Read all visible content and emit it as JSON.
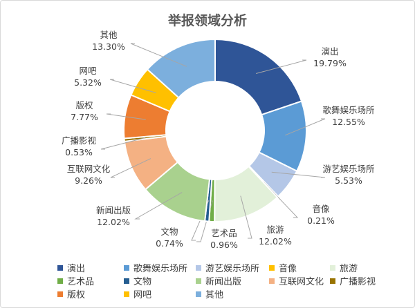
{
  "chart_data": {
    "type": "pie",
    "variant": "donut",
    "title": "举报领域分析",
    "legend_position": "bottom",
    "categories": [
      "演出",
      "歌舞娱乐场所",
      "游艺娱乐场所",
      "音像",
      "旅游",
      "艺术品",
      "文物",
      "新闻出版",
      "互联网文化",
      "广播影视",
      "版权",
      "网吧",
      "其他"
    ],
    "values": [
      19.79,
      12.55,
      5.53,
      0.21,
      12.02,
      0.96,
      0.74,
      12.02,
      9.26,
      0.53,
      7.77,
      5.32,
      13.3
    ],
    "data_labels": [
      "19.79%",
      "12.55%",
      "5.53%",
      "0.21%",
      "12.02%",
      "0.96%",
      "0.74%",
      "12.02%",
      "9.26%",
      "0.53%",
      "7.77%",
      "5.32%",
      "13.30%"
    ],
    "colors": [
      "#2F5597",
      "#5B9BD5",
      "#B4C7E7",
      "#FFC000",
      "#E2F0D9",
      "#70AD47",
      "#255E91",
      "#A9D18E",
      "#F4B183",
      "#997300",
      "#ED7D31",
      "#FFC000",
      "#7CAFDD"
    ]
  }
}
